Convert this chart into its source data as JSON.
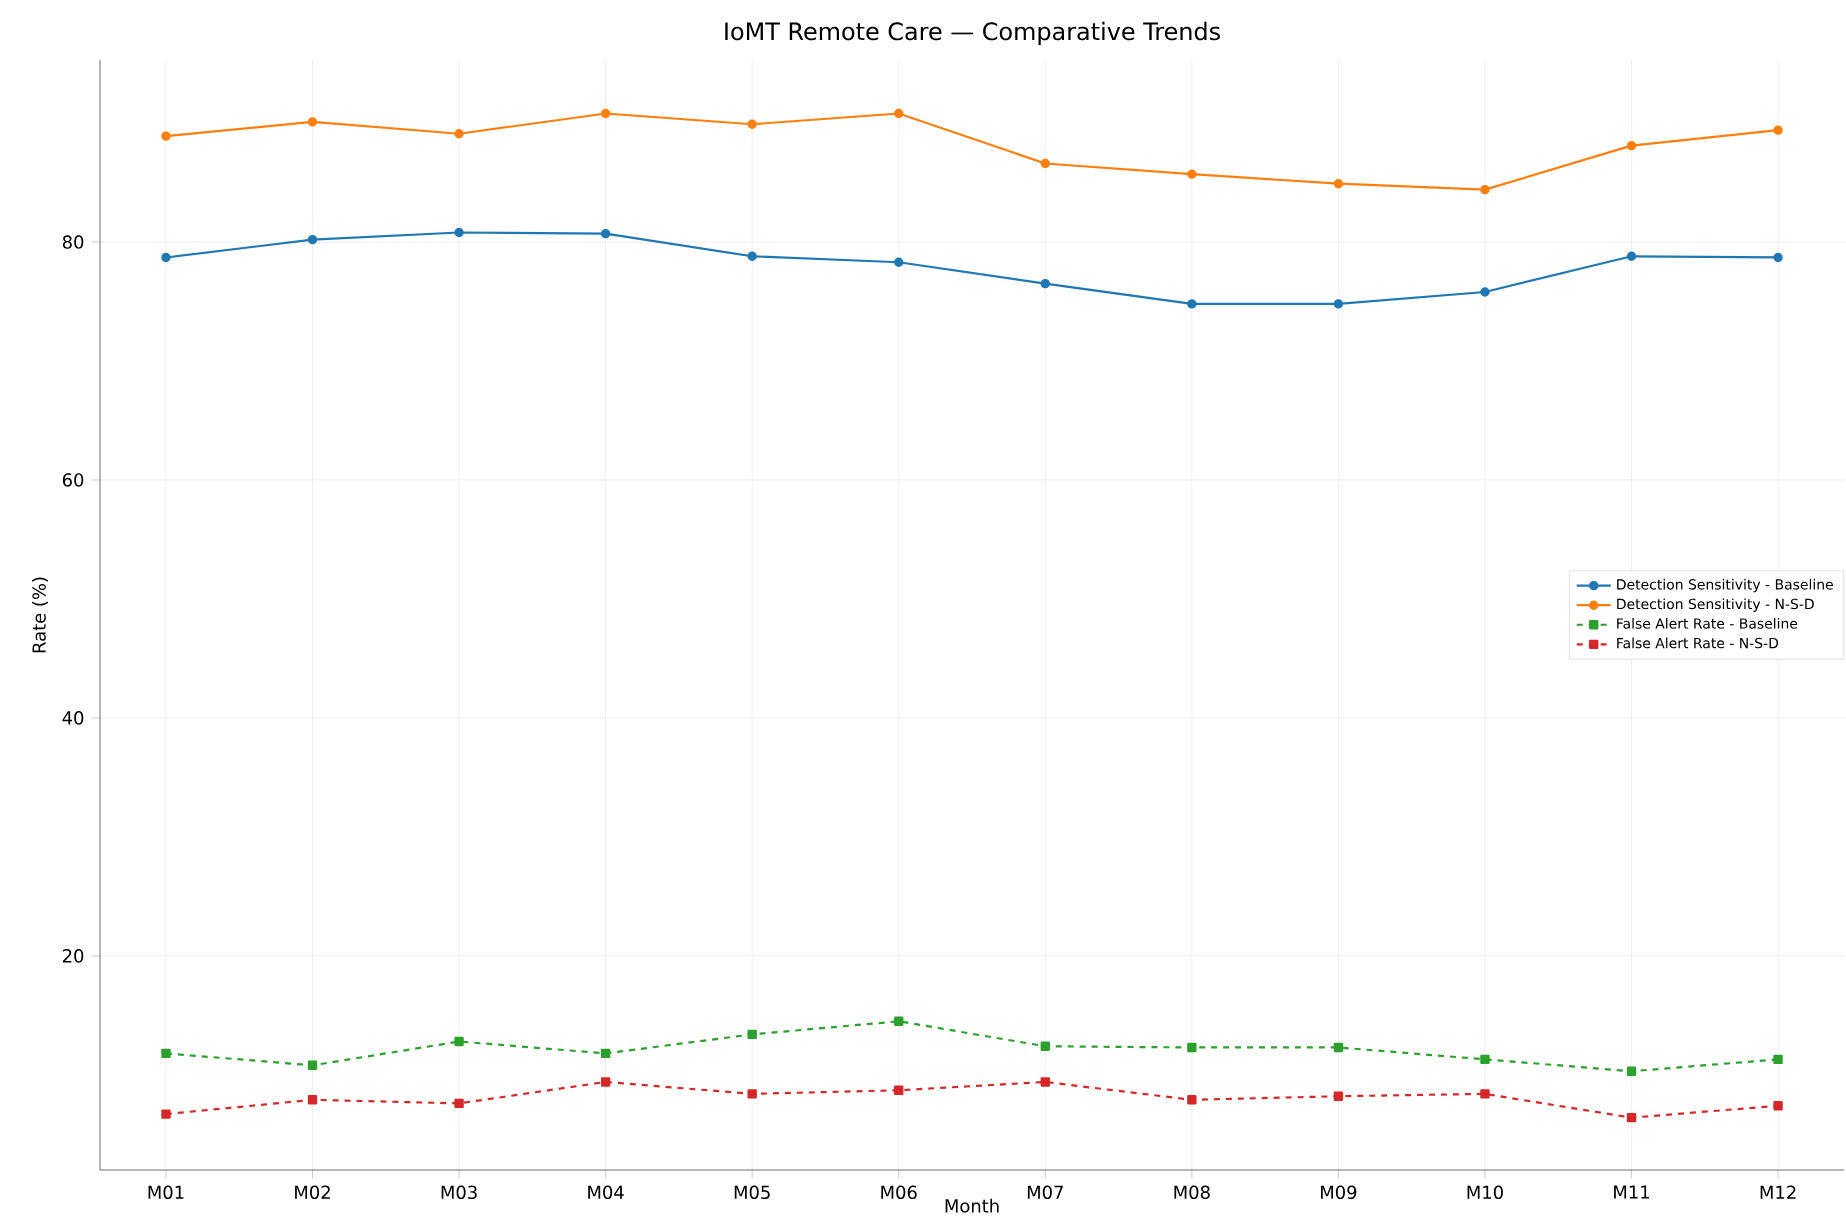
{
  "chart_data": {
    "type": "line",
    "title": "IoMT Remote Care — Comparative Trends",
    "xlabel": "Month",
    "ylabel": "Rate (%)",
    "categories": [
      "M01",
      "M02",
      "M03",
      "M04",
      "M05",
      "M06",
      "M07",
      "M08",
      "M09",
      "M10",
      "M11",
      "M12"
    ],
    "series": [
      {
        "name": "Detection Sensitivity - Baseline",
        "color": "#1f77b4",
        "marker": "circle",
        "line_style": "solid",
        "values": [
          78.7,
          80.2,
          80.8,
          80.7,
          78.8,
          78.3,
          76.5,
          74.8,
          74.8,
          75.8,
          78.8,
          78.7
        ]
      },
      {
        "name": "Detection Sensitivity - N-S-D",
        "color": "#ff7f0e",
        "marker": "circle",
        "line_style": "solid",
        "values": [
          88.9,
          90.1,
          89.1,
          90.8,
          89.9,
          90.8,
          86.6,
          85.7,
          84.9,
          84.4,
          88.1,
          89.4
        ]
      },
      {
        "name": "False Alert Rate - Baseline",
        "color": "#2ca02c",
        "marker": "square",
        "line_style": "dashed",
        "values": [
          11.8,
          10.8,
          12.8,
          11.8,
          13.4,
          14.5,
          12.4,
          12.3,
          12.3,
          11.3,
          10.3,
          11.3
        ]
      },
      {
        "name": "False Alert Rate - N-S-D",
        "color": "#d62728",
        "marker": "square",
        "line_style": "dashed",
        "values": [
          6.7,
          7.9,
          7.6,
          9.4,
          8.4,
          8.7,
          9.4,
          7.9,
          8.2,
          8.4,
          6.4,
          7.4
        ]
      }
    ],
    "ylim": [
      2,
      95.3
    ],
    "yticks": [
      20,
      40,
      60,
      80
    ],
    "grid": true,
    "legend": "right"
  }
}
